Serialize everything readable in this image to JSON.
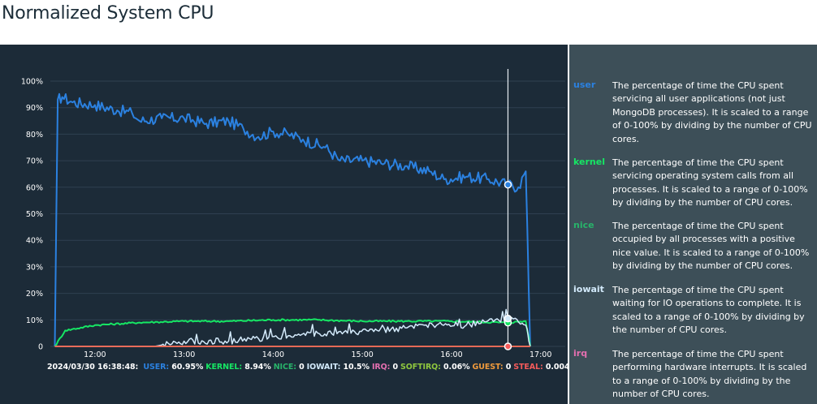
{
  "page": {
    "title": "Normalized System CPU"
  },
  "chart_data": {
    "type": "line",
    "ylim": [
      0,
      100
    ],
    "y_ticks": [
      "100%",
      "90%",
      "80%",
      "70%",
      "60%",
      "50%",
      "40%",
      "30%",
      "20%",
      "10%",
      "0"
    ],
    "x_ticks": [
      "12:00",
      "13:00",
      "14:00",
      "15:00",
      "16:00",
      "17:00"
    ],
    "grid": true,
    "cursor_time": "16:38:48",
    "series": [
      {
        "name": "user",
        "color": "#2b81e0",
        "x": [
          "11:33",
          "11:35",
          "11:38",
          "11:45",
          "12:00",
          "12:15",
          "12:25",
          "12:30",
          "12:45",
          "13:00",
          "13:15",
          "13:30",
          "13:40",
          "13:50",
          "14:00",
          "14:10",
          "14:20",
          "14:35",
          "14:45",
          "15:00",
          "15:15",
          "15:30",
          "15:45",
          "15:55",
          "16:10",
          "16:25",
          "16:38",
          "16:45",
          "16:50",
          "16:53"
        ],
        "values": [
          0,
          93,
          94,
          92,
          91,
          89,
          88,
          85,
          86,
          86,
          84,
          85,
          82,
          79,
          81,
          80,
          78,
          75,
          70,
          70,
          69,
          68,
          66,
          63,
          64,
          63,
          61,
          60,
          66,
          0
        ]
      },
      {
        "name": "kernel",
        "color": "#16e664",
        "x": [
          "11:33",
          "11:40",
          "12:00",
          "12:30",
          "13:00",
          "13:30",
          "14:00",
          "14:30",
          "15:00",
          "15:30",
          "16:00",
          "16:38",
          "16:50",
          "16:53"
        ],
        "values": [
          0,
          6,
          8,
          9,
          9.5,
          9.5,
          10,
          10,
          9.5,
          9.5,
          9.5,
          8.94,
          9.5,
          0
        ]
      },
      {
        "name": "nice",
        "color": "#28b36a",
        "x": [
          "11:33",
          "16:53"
        ],
        "values": [
          0,
          0
        ]
      },
      {
        "name": "iowait",
        "color": "#d3eafb",
        "x": [
          "11:33",
          "12:40",
          "13:00",
          "13:30",
          "13:50",
          "14:10",
          "14:30",
          "14:50",
          "15:10",
          "15:30",
          "15:50",
          "16:10",
          "16:38",
          "16:50",
          "16:53"
        ],
        "values": [
          0,
          0,
          2,
          2,
          3,
          4,
          5,
          5,
          6,
          7,
          8,
          8,
          10.5,
          8,
          0
        ]
      },
      {
        "name": "irq",
        "color": "#e56fb0",
        "x": [
          "11:33",
          "16:53"
        ],
        "values": [
          0,
          0
        ]
      },
      {
        "name": "softirq",
        "color": "#8fc73e",
        "x": [
          "11:33",
          "16:53"
        ],
        "values": [
          0,
          0.06
        ]
      },
      {
        "name": "guest",
        "color": "#ef9a3c",
        "x": [
          "11:33",
          "16:53"
        ],
        "values": [
          0,
          0
        ]
      },
      {
        "name": "steal",
        "color": "#f45a5a",
        "x": [
          "11:33",
          "16:53"
        ],
        "values": [
          0,
          0.004
        ]
      }
    ]
  },
  "status": {
    "timestamp": "2024/03/30 16:38:48:",
    "items": [
      {
        "label": "USER:",
        "value": " 60.95%",
        "color": "#2b81e0"
      },
      {
        "label": "KERNEL:",
        "value": " 8.94%",
        "color": "#16e664"
      },
      {
        "label": "NICE:",
        "value": " 0",
        "color": "#28b36a"
      },
      {
        "label": "IOWAIT:",
        "value": " 10.5%",
        "color": "#d3eafb"
      },
      {
        "label": "IRQ:",
        "value": " 0",
        "color": "#e56fb0"
      },
      {
        "label": "SOFTIRQ:",
        "value": " 0.06%",
        "color": "#8fc73e"
      },
      {
        "label": "GUEST:",
        "value": " 0",
        "color": "#ef9a3c"
      },
      {
        "label": "STEAL:",
        "value": " 0.004%",
        "color": "#f45a5a"
      }
    ]
  },
  "legend": [
    {
      "name": "user",
      "color": "#2b81e0",
      "desc": "The percentage of time the CPU spent servicing all user applications (not just MongoDB processes). It is scaled to a range of 0-100% by dividing by the number of CPU cores."
    },
    {
      "name": "kernel",
      "color": "#16e664",
      "desc": "The percentage of time the CPU spent servicing operating system calls from all processes. It is scaled to a range of 0-100% by dividing by the number of CPU cores."
    },
    {
      "name": "nice",
      "color": "#28b36a",
      "desc": "The percentage of time the CPU spent occupied by all processes with a positive nice value. It is scaled to a range of 0-100% by dividing by the number of CPU cores."
    },
    {
      "name": "iowait",
      "color": "#d3eafb",
      "desc": "The percentage of time the CPU spent waiting for IO operations to complete. It is scaled to a range of 0-100% by dividing by the number of CPU cores."
    },
    {
      "name": "irq",
      "color": "#e56fb0",
      "desc": "The percentage of time the CPU spent performing hardware interrupts. It is scaled to a range of 0-100% by dividing by the number of CPU cores."
    }
  ]
}
